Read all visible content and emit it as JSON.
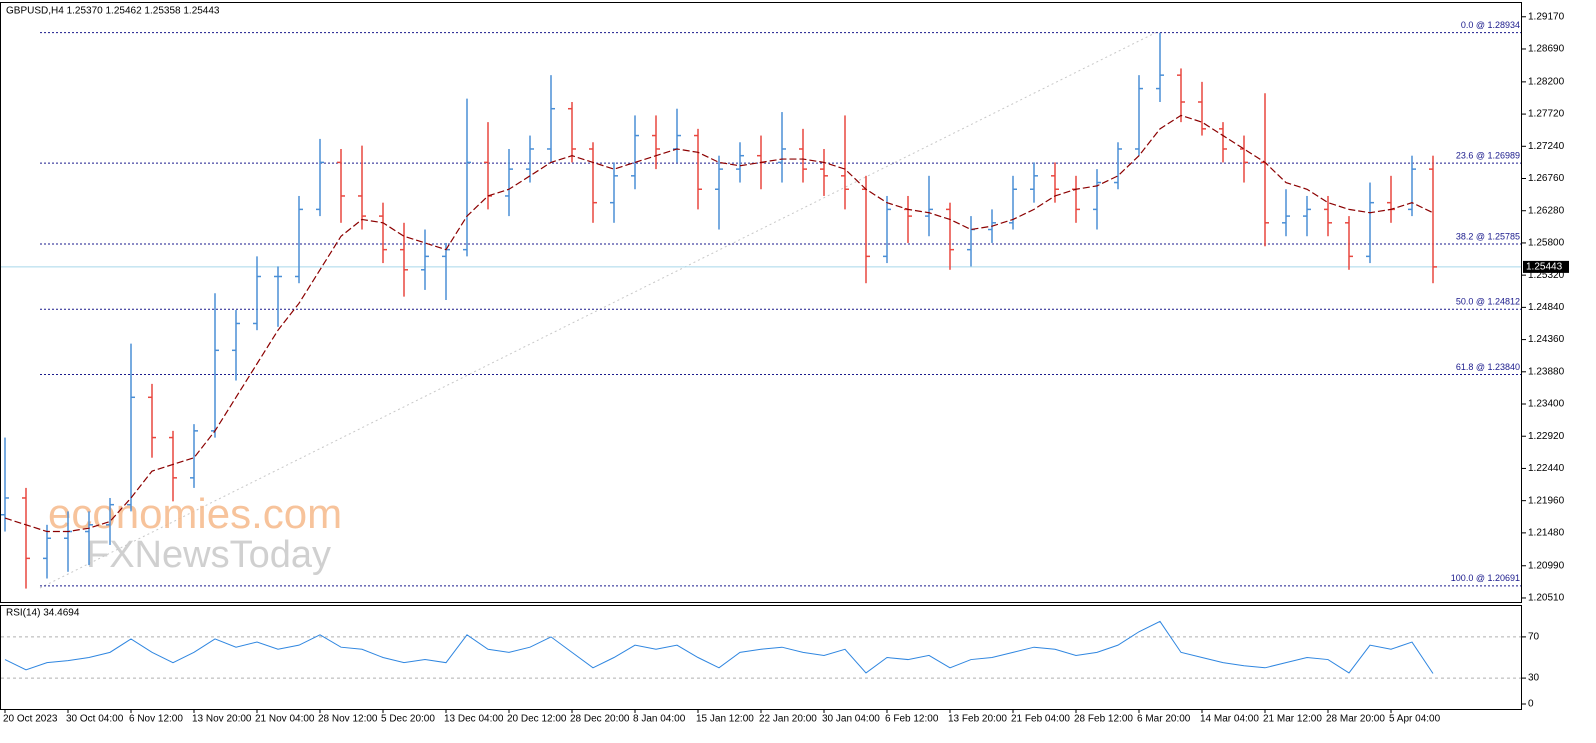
{
  "chart_data": [
    {
      "type": "ohlc",
      "title": "GBPUSD,H4  1.25370 1.25462 1.25358 1.25443",
      "watermark": [
        "economies.com",
        "FXNewsToday"
      ],
      "categories": [
        "20 Oct 2023",
        null,
        null,
        "30 Oct 04:00",
        null,
        null,
        "6 Nov 12:00",
        null,
        null,
        "13 Nov 20:00",
        null,
        null,
        "21 Nov 04:00",
        null,
        null,
        "28 Nov 12:00",
        null,
        null,
        "5 Dec 20:00",
        null,
        null,
        "13 Dec 04:00",
        null,
        null,
        "20 Dec 12:00",
        null,
        null,
        "28 Dec 20:00",
        null,
        null,
        "8 Jan 04:00",
        null,
        null,
        "15 Jan 12:00",
        null,
        null,
        "22 Jan 20:00",
        null,
        null,
        "30 Jan 04:00",
        null,
        null,
        "6 Feb 12:00",
        null,
        null,
        "13 Feb 20:00",
        null,
        null,
        "21 Feb 04:00",
        null,
        null,
        "28 Feb 12:00",
        null,
        null,
        "6 Mar 20:00",
        null,
        null,
        "14 Mar 04:00",
        null,
        null,
        "21 Mar 12:00",
        null,
        null,
        "28 Mar 20:00",
        null,
        null,
        "5 Apr 04:00",
        null,
        null
      ],
      "ohlc": [
        [
          1.2175,
          1.229,
          1.215,
          1.22
        ],
        [
          1.22,
          1.2215,
          1.2065,
          1.211
        ],
        [
          1.211,
          1.216,
          1.208,
          1.214
        ],
        [
          1.214,
          1.218,
          1.209,
          1.215
        ],
        [
          1.215,
          1.218,
          1.21,
          1.216
        ],
        [
          1.216,
          1.22,
          1.213,
          1.219
        ],
        [
          1.219,
          1.243,
          1.218,
          1.235
        ],
        [
          1.235,
          1.237,
          1.226,
          1.229
        ],
        [
          1.229,
          1.23,
          1.2195,
          1.223
        ],
        [
          1.223,
          1.231,
          1.2215,
          1.23
        ],
        [
          1.23,
          1.2505,
          1.229,
          1.242
        ],
        [
          1.242,
          1.248,
          1.2375,
          1.246
        ],
        [
          1.246,
          1.256,
          1.245,
          1.253
        ],
        [
          1.253,
          1.2545,
          1.2455,
          1.253
        ],
        [
          1.253,
          1.265,
          1.252,
          1.263
        ],
        [
          1.263,
          1.2735,
          1.262,
          1.27
        ],
        [
          1.27,
          1.272,
          1.261,
          1.265
        ],
        [
          1.265,
          1.2725,
          1.26,
          1.262
        ],
        [
          1.262,
          1.264,
          1.255,
          1.257
        ],
        [
          1.257,
          1.261,
          1.25,
          1.254
        ],
        [
          1.254,
          1.26,
          1.251,
          1.256
        ],
        [
          1.256,
          1.258,
          1.2495,
          1.257
        ],
        [
          1.257,
          1.2795,
          1.256,
          1.27
        ],
        [
          1.27,
          1.276,
          1.263,
          1.265
        ],
        [
          1.265,
          1.272,
          1.262,
          1.269
        ],
        [
          1.269,
          1.274,
          1.267,
          1.272
        ],
        [
          1.272,
          1.283,
          1.27,
          1.278
        ],
        [
          1.278,
          1.279,
          1.27,
          1.272
        ],
        [
          1.272,
          1.273,
          1.261,
          1.264
        ],
        [
          1.264,
          1.27,
          1.261,
          1.268
        ],
        [
          1.268,
          1.277,
          1.266,
          1.274
        ],
        [
          1.274,
          1.277,
          1.269,
          1.272
        ],
        [
          1.272,
          1.278,
          1.27,
          1.274
        ],
        [
          1.274,
          1.275,
          1.263,
          1.266
        ],
        [
          1.266,
          1.271,
          1.26,
          1.269
        ],
        [
          1.269,
          1.273,
          1.267,
          1.271
        ],
        [
          1.271,
          1.274,
          1.266,
          1.27
        ],
        [
          1.27,
          1.2775,
          1.267,
          1.272
        ],
        [
          1.272,
          1.275,
          1.267,
          1.269
        ],
        [
          1.269,
          1.272,
          1.265,
          1.268
        ],
        [
          1.268,
          1.277,
          1.263,
          1.266
        ],
        [
          1.266,
          1.268,
          1.252,
          1.256
        ],
        [
          1.256,
          1.265,
          1.255,
          1.263
        ],
        [
          1.263,
          1.265,
          1.258,
          1.262
        ],
        [
          1.262,
          1.268,
          1.259,
          1.263
        ],
        [
          1.263,
          1.264,
          1.254,
          1.257
        ],
        [
          1.257,
          1.262,
          1.2545,
          1.26
        ],
        [
          1.26,
          1.263,
          1.258,
          1.261
        ],
        [
          1.261,
          1.268,
          1.26,
          1.266
        ],
        [
          1.266,
          1.27,
          1.264,
          1.268
        ],
        [
          1.268,
          1.27,
          1.264,
          1.266
        ],
        [
          1.266,
          1.268,
          1.261,
          1.263
        ],
        [
          1.263,
          1.269,
          1.26,
          1.267
        ],
        [
          1.267,
          1.273,
          1.266,
          1.272
        ],
        [
          1.272,
          1.283,
          1.271,
          1.281
        ],
        [
          1.281,
          1.2893,
          1.279,
          1.283
        ],
        [
          1.283,
          1.284,
          1.276,
          1.279
        ],
        [
          1.279,
          1.282,
          1.274,
          1.275
        ],
        [
          1.275,
          1.276,
          1.27,
          1.272
        ],
        [
          1.272,
          1.274,
          1.267,
          1.27
        ],
        [
          1.27,
          1.2803,
          1.2575,
          1.261
        ],
        [
          1.261,
          1.266,
          1.259,
          1.262
        ],
        [
          1.262,
          1.265,
          1.259,
          1.263
        ],
        [
          1.263,
          1.265,
          1.259,
          1.261
        ],
        [
          1.261,
          1.262,
          1.254,
          1.256
        ],
        [
          1.256,
          1.267,
          1.255,
          1.264
        ],
        [
          1.264,
          1.268,
          1.261,
          1.263
        ],
        [
          1.263,
          1.271,
          1.262,
          1.269
        ],
        [
          1.269,
          1.271,
          1.252,
          1.25443
        ]
      ],
      "up_color": "#4a8fd6",
      "down_color": "#e8473f",
      "ma": {
        "color": "#8b0000",
        "values": [
          1.217,
          1.216,
          1.215,
          1.215,
          1.2155,
          1.2165,
          1.22,
          1.224,
          1.225,
          1.226,
          1.23,
          1.235,
          1.24,
          1.245,
          1.249,
          1.254,
          1.259,
          1.2615,
          1.261,
          1.259,
          1.258,
          1.257,
          1.262,
          1.265,
          1.266,
          1.268,
          1.27,
          1.271,
          1.27,
          1.269,
          1.27,
          1.271,
          1.272,
          1.2715,
          1.27,
          1.2695,
          1.27,
          1.2705,
          1.2705,
          1.27,
          1.269,
          1.266,
          1.264,
          1.263,
          1.2625,
          1.2615,
          1.26,
          1.2605,
          1.2615,
          1.263,
          1.265,
          1.266,
          1.2665,
          1.268,
          1.271,
          1.275,
          1.277,
          1.276,
          1.274,
          1.272,
          1.27,
          1.267,
          1.266,
          1.264,
          1.263,
          1.2625,
          1.263,
          1.264,
          1.2625
        ]
      },
      "levels": [
        {
          "value": 1.28934,
          "label": "0.0 @ 1.28934"
        },
        {
          "value": 1.26989,
          "label": "23.6 @ 1.26989"
        },
        {
          "value": 1.25785,
          "label": "38.2 @ 1.25785"
        },
        {
          "value": 1.24812,
          "label": "50.0 @ 1.24812"
        },
        {
          "value": 1.2384,
          "label": "61.8 @ 1.23840"
        },
        {
          "value": 1.20691,
          "label": "100.0 @ 1.20691"
        }
      ],
      "level_color": "#1a1a8c",
      "current": {
        "value": 1.25443,
        "label": "1.25443"
      },
      "ylim": [
        1.2045,
        1.2939
      ],
      "yticks": [
        {
          "value": 1.2917,
          "label": "1.29170"
        },
        {
          "value": 1.2869,
          "label": "1.28690"
        },
        {
          "value": 1.282,
          "label": "1.28200"
        },
        {
          "value": 1.2772,
          "label": "1.27720"
        },
        {
          "value": 1.2724,
          "label": "1.27240"
        },
        {
          "value": 1.2676,
          "label": "1.26760"
        },
        {
          "value": 1.2628,
          "label": "1.26280"
        },
        {
          "value": 1.258,
          "label": "1.25800"
        },
        {
          "value": 1.2532,
          "label": "1.25320"
        },
        {
          "value": 1.2484,
          "label": "1.24840"
        },
        {
          "value": 1.2436,
          "label": "1.24360"
        },
        {
          "value": 1.2388,
          "label": "1.23880"
        },
        {
          "value": 1.234,
          "label": "1.23400"
        },
        {
          "value": 1.2292,
          "label": "1.22920"
        },
        {
          "value": 1.2244,
          "label": "1.22440"
        },
        {
          "value": 1.2196,
          "label": "1.21960"
        },
        {
          "value": 1.2148,
          "label": "1.21480"
        },
        {
          "value": 1.2099,
          "label": "1.20990"
        },
        {
          "value": 1.2051,
          "label": "1.20510"
        }
      ]
    },
    {
      "type": "line",
      "title": "RSI(14) 34.4694",
      "color": "#2f86e0",
      "values": [
        48,
        38,
        45,
        47,
        50,
        55,
        68,
        55,
        45,
        55,
        68,
        60,
        65,
        58,
        62,
        72,
        60,
        58,
        50,
        45,
        48,
        45,
        72,
        58,
        55,
        60,
        70,
        55,
        40,
        50,
        62,
        58,
        62,
        50,
        40,
        55,
        58,
        60,
        55,
        52,
        58,
        35,
        50,
        48,
        52,
        40,
        48,
        50,
        55,
        60,
        58,
        52,
        55,
        62,
        75,
        85,
        55,
        50,
        45,
        42,
        40,
        45,
        50,
        48,
        35,
        62,
        58,
        65,
        34.4694
      ],
      "ylim": [
        0,
        100
      ],
      "yticks": [
        0,
        30,
        70
      ],
      "levels": [
        30,
        70
      ]
    }
  ]
}
